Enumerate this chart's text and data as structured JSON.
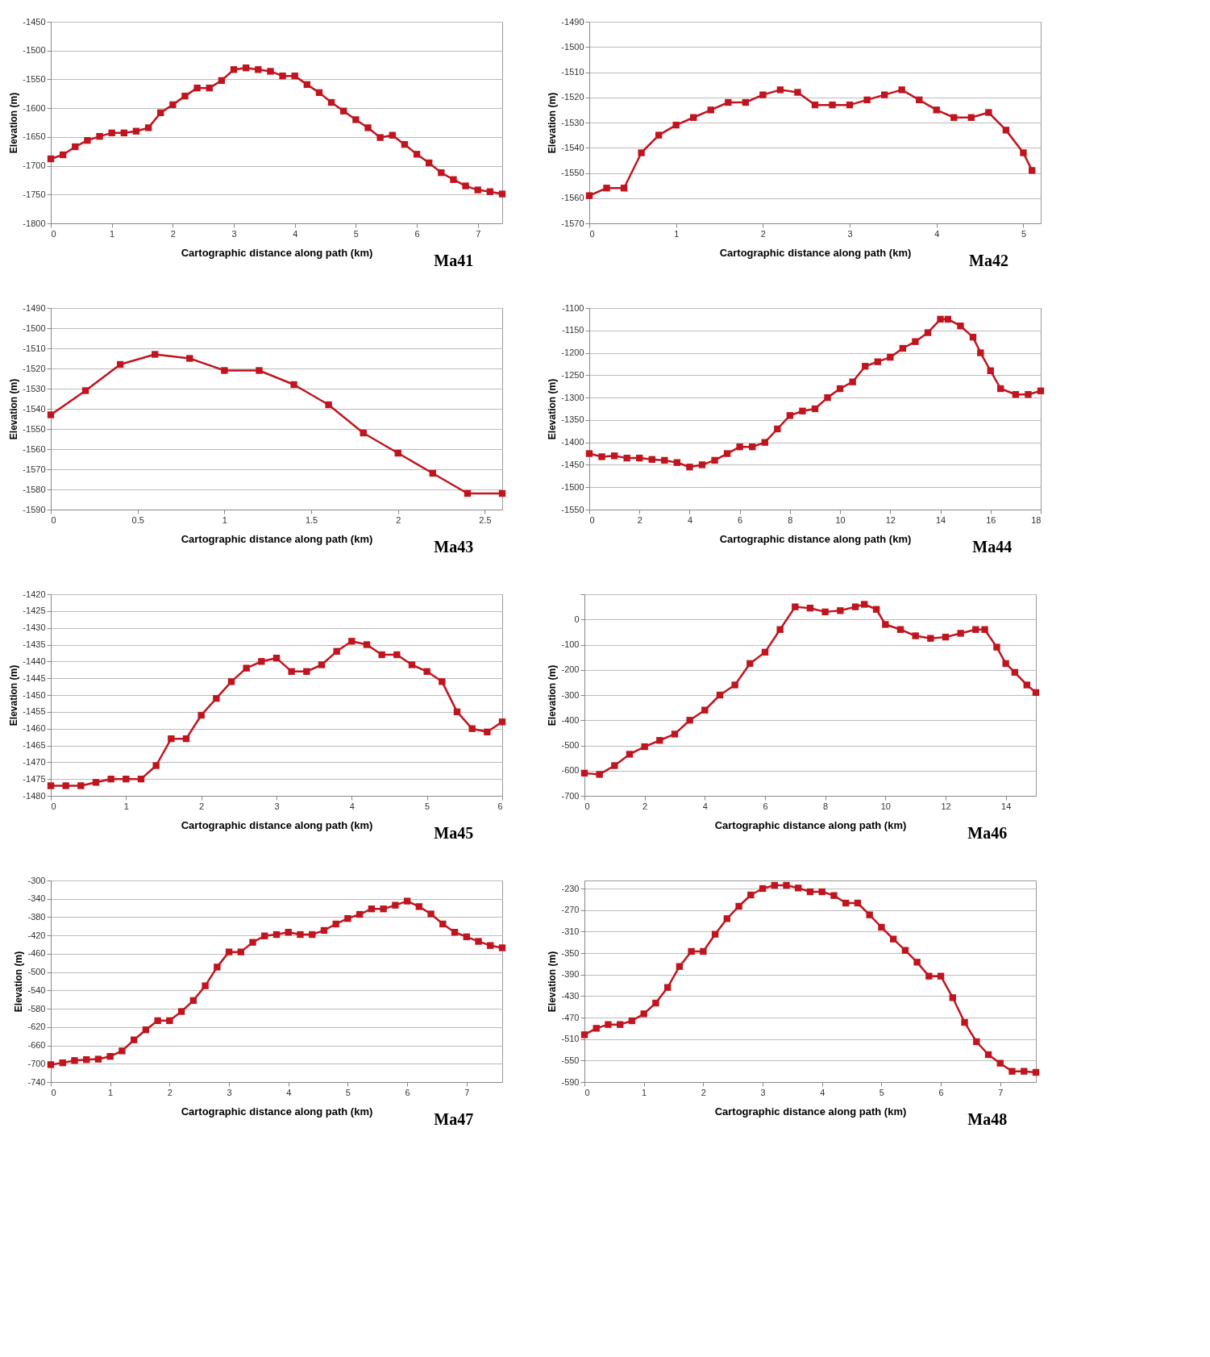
{
  "chart_data": [
    {
      "type": "line",
      "title": "Ma41",
      "xlabel": "Cartographic distance along path (km)",
      "ylabel": "Elevation (m)",
      "xlim": [
        0,
        7.4
      ],
      "xticks": [
        0,
        1,
        2,
        3,
        4,
        5,
        6,
        7
      ],
      "ylim": [
        -1800,
        -1450
      ],
      "yticks": [
        -1800,
        -1750,
        -1700,
        -1650,
        -1600,
        -1550,
        -1500,
        -1450
      ],
      "grid": "y",
      "marker": "square",
      "line_style": "solid",
      "series": [
        {
          "color": "#c0141e",
          "x": [
            0,
            0.2,
            0.4,
            0.6,
            0.8,
            1,
            1.2,
            1.4,
            1.6,
            1.8,
            2,
            2.2,
            2.4,
            2.6,
            2.8,
            3,
            3.2,
            3.4,
            3.6,
            3.8,
            4,
            4.2,
            4.4,
            4.6,
            4.8,
            5,
            5.2,
            5.4,
            5.6,
            5.8,
            6,
            6.2,
            6.4,
            6.6,
            6.8,
            7,
            7.2,
            7.4
          ],
          "values": [
            -1688,
            -1681,
            -1667,
            -1656,
            -1649,
            -1643,
            -1643,
            -1640,
            -1634,
            -1608,
            -1594,
            -1579,
            -1565,
            -1565,
            -1552,
            -1533,
            -1530,
            -1533,
            -1536,
            -1544,
            -1544,
            -1559,
            -1573,
            -1590,
            -1605,
            -1620,
            -1634,
            -1651,
            -1647,
            -1663,
            -1680,
            -1695,
            -1712,
            -1724,
            -1735,
            -1742,
            -1745,
            -1749
          ]
        }
      ]
    },
    {
      "type": "line",
      "title": "Ma42",
      "xlabel": "Cartographic distance along path (km)",
      "ylabel": "Elevation (m)",
      "xlim": [
        0,
        5.2
      ],
      "xticks": [
        0,
        1,
        2,
        3,
        4,
        5
      ],
      "ylim": [
        -1570,
        -1490
      ],
      "yticks": [
        -1570,
        -1560,
        -1550,
        -1540,
        -1530,
        -1520,
        -1510,
        -1500,
        -1490
      ],
      "grid": "y",
      "marker": "square",
      "line_style": "solid",
      "series": [
        {
          "color": "#c0141e",
          "x": [
            0,
            0.2,
            0.4,
            0.6,
            0.8,
            1,
            1.2,
            1.4,
            1.6,
            1.8,
            2,
            2.2,
            2.4,
            2.6,
            2.8,
            3,
            3.2,
            3.4,
            3.6,
            3.8,
            4,
            4.2,
            4.4,
            4.6,
            4.8,
            5,
            5.1
          ],
          "values": [
            -1559,
            -1556,
            -1556,
            -1542,
            -1535,
            -1531,
            -1528,
            -1525,
            -1522,
            -1522,
            -1519,
            -1517,
            -1518,
            -1523,
            -1523,
            -1523,
            -1521,
            -1519,
            -1517,
            -1521,
            -1525,
            -1528,
            -1528,
            -1526,
            -1533,
            -1542,
            -1549
          ]
        }
      ]
    },
    {
      "type": "line",
      "title": "Ma43",
      "xlabel": "Cartographic distance along path (km)",
      "ylabel": "Elevation (m)",
      "xlim": [
        0,
        2.6
      ],
      "xticks": [
        0,
        0.5,
        1,
        1.5,
        2,
        2.5
      ],
      "ylim": [
        -1590,
        -1490
      ],
      "yticks": [
        -1590,
        -1580,
        -1570,
        -1560,
        -1550,
        -1540,
        -1530,
        -1520,
        -1510,
        -1500,
        -1490
      ],
      "grid": "y",
      "marker": "square",
      "line_style": "solid",
      "series": [
        {
          "color": "#c0141e",
          "x": [
            0,
            0.2,
            0.4,
            0.6,
            0.8,
            1,
            1.2,
            1.4,
            1.6,
            1.8,
            2,
            2.2,
            2.4,
            2.6
          ],
          "values": [
            -1543,
            -1531,
            -1518,
            -1513,
            -1515,
            -1521,
            -1521,
            -1528,
            -1538,
            -1552,
            -1562,
            -1572,
            -1582,
            -1582
          ]
        }
      ]
    },
    {
      "type": "line",
      "title": "Ma44",
      "xlabel": "Cartographic distance along path (km)",
      "ylabel": "Elevation (m)",
      "xlim": [
        0,
        18
      ],
      "xticks": [
        0,
        2,
        4,
        6,
        8,
        10,
        12,
        14,
        16,
        18
      ],
      "ylim": [
        -1550,
        -1100
      ],
      "yticks": [
        -1550,
        -1500,
        -1450,
        -1400,
        -1350,
        -1300,
        -1250,
        -1200,
        -1150,
        -1100
      ],
      "grid": "y",
      "marker": "square",
      "line_style": "solid",
      "series": [
        {
          "color": "#c0141e",
          "x": [
            0,
            0.5,
            1,
            1.5,
            2,
            2.5,
            3,
            3.5,
            4,
            4.5,
            5,
            5.5,
            6,
            6.5,
            7,
            7.5,
            8,
            8.5,
            9,
            9.5,
            10,
            10.5,
            11,
            11.5,
            12,
            12.5,
            13,
            13.5,
            14,
            14.3,
            14.8,
            15.3,
            15.6,
            16,
            16.4,
            17,
            17.5,
            18
          ],
          "values": [
            -1425,
            -1432,
            -1430,
            -1435,
            -1435,
            -1438,
            -1440,
            -1445,
            -1455,
            -1450,
            -1440,
            -1425,
            -1410,
            -1410,
            -1400,
            -1370,
            -1340,
            -1330,
            -1325,
            -1300,
            -1280,
            -1265,
            -1230,
            -1220,
            -1210,
            -1190,
            -1175,
            -1155,
            -1125,
            -1125,
            -1140,
            -1165,
            -1200,
            -1240,
            -1280,
            -1293,
            -1293,
            -1285
          ]
        }
      ]
    },
    {
      "type": "line",
      "title": "Ma45",
      "xlabel": "Cartographic distance along path (km)",
      "ylabel": "Elevation (m)",
      "xlim": [
        0,
        6
      ],
      "xticks": [
        0,
        1,
        2,
        3,
        4,
        5,
        6
      ],
      "ylim": [
        -1480,
        -1420
      ],
      "yticks": [
        -1480,
        -1475,
        -1470,
        -1465,
        -1460,
        -1455,
        -1450,
        -1445,
        -1440,
        -1435,
        -1430,
        -1425,
        -1420
      ],
      "grid": "y",
      "marker": "square",
      "line_style": "solid",
      "series": [
        {
          "color": "#c0141e",
          "x": [
            0,
            0.2,
            0.4,
            0.6,
            0.8,
            1,
            1.2,
            1.4,
            1.6,
            1.8,
            2,
            2.2,
            2.4,
            2.6,
            2.8,
            3,
            3.2,
            3.4,
            3.6,
            3.8,
            4,
            4.2,
            4.4,
            4.6,
            4.8,
            5,
            5.2,
            5.4,
            5.6,
            5.8,
            6
          ],
          "values": [
            -1477,
            -1477,
            -1477,
            -1476,
            -1475,
            -1475,
            -1475,
            -1471,
            -1463,
            -1463,
            -1456,
            -1451,
            -1446,
            -1442,
            -1440,
            -1439,
            -1443,
            -1443,
            -1441,
            -1437,
            -1434,
            -1435,
            -1438,
            -1438,
            -1441,
            -1443,
            -1446,
            -1455,
            -1460,
            -1461,
            -1458
          ]
        }
      ]
    },
    {
      "type": "line",
      "title": "Ma46",
      "xlabel": "Cartographic distance along path (km)",
      "ylabel": "Elevation (m)",
      "xlim": [
        0,
        15
      ],
      "xticks": [
        0,
        2,
        4,
        6,
        8,
        10,
        12,
        14
      ],
      "ylim": [
        -700,
        100
      ],
      "yticks": [
        -700,
        -600,
        -500,
        -400,
        -300,
        -200,
        -100,
        0,
        {
          "value": 100,
          "label": null
        }
      ],
      "grid": "y",
      "marker": "square",
      "line_style": "solid",
      "series": [
        {
          "color": "#c0141e",
          "x": [
            0,
            0.5,
            1,
            1.5,
            2,
            2.5,
            3,
            3.5,
            4,
            4.5,
            5,
            5.5,
            6,
            6.5,
            7,
            7.5,
            8,
            8.5,
            9,
            9.3,
            9.7,
            10,
            10.5,
            11,
            11.5,
            12,
            12.5,
            13,
            13.3,
            13.7,
            14,
            14.3,
            14.7,
            15
          ],
          "values": [
            -610,
            -615,
            -580,
            -535,
            -505,
            -480,
            -455,
            -400,
            -360,
            -300,
            -260,
            -175,
            -130,
            -40,
            50,
            45,
            30,
            35,
            50,
            60,
            40,
            -20,
            -40,
            -65,
            -75,
            -70,
            -55,
            -40,
            -40,
            -110,
            -175,
            -210,
            -260,
            -290
          ]
        }
      ]
    },
    {
      "type": "line",
      "title": "Ma47",
      "xlabel": "Cartographic distance along path (km)",
      "ylabel": "Elevation (m)",
      "xlim": [
        0,
        7.6
      ],
      "xticks": [
        0,
        1,
        2,
        3,
        4,
        5,
        6,
        7
      ],
      "ylim": [
        -740,
        -300
      ],
      "yticks": [
        -740,
        -700,
        -660,
        -620,
        -580,
        -540,
        -500,
        -460,
        -420,
        -380,
        -340,
        -300
      ],
      "grid": "y",
      "marker": "square",
      "line_style": "solid",
      "series": [
        {
          "color": "#c0141e",
          "x": [
            0,
            0.2,
            0.4,
            0.6,
            0.8,
            1,
            1.2,
            1.4,
            1.6,
            1.8,
            2,
            2.2,
            2.4,
            2.6,
            2.8,
            3,
            3.2,
            3.4,
            3.6,
            3.8,
            4,
            4.2,
            4.4,
            4.6,
            4.8,
            5,
            5.2,
            5.4,
            5.6,
            5.8,
            6,
            6.2,
            6.4,
            6.6,
            6.8,
            7,
            7.2,
            7.4,
            7.6
          ],
          "values": [
            -702,
            -698,
            -693,
            -691,
            -690,
            -684,
            -672,
            -648,
            -626,
            -606,
            -606,
            -586,
            -562,
            -530,
            -489,
            -456,
            -456,
            -435,
            -421,
            -418,
            -413,
            -418,
            -418,
            -409,
            -395,
            -383,
            -374,
            -362,
            -362,
            -354,
            -345,
            -357,
            -373,
            -395,
            -413,
            -423,
            -433,
            -442,
            -447
          ]
        }
      ]
    },
    {
      "type": "line",
      "title": "Ma48",
      "xlabel": "Cartographic distance along path (km)",
      "ylabel": "Elevation (m)",
      "xlim": [
        0,
        7.6
      ],
      "xticks": [
        0,
        1,
        2,
        3,
        4,
        5,
        6,
        7
      ],
      "ylim": [
        -590,
        -215
      ],
      "yticks": [
        -590,
        -550,
        -510,
        -470,
        -430,
        -390,
        -350,
        -310,
        -270,
        -230
      ],
      "grid": "y",
      "marker": "square",
      "line_style": "solid",
      "series": [
        {
          "color": "#c0141e",
          "x": [
            0,
            0.2,
            0.4,
            0.6,
            0.8,
            1,
            1.2,
            1.4,
            1.6,
            1.8,
            2,
            2.2,
            2.4,
            2.6,
            2.8,
            3,
            3.2,
            3.4,
            3.6,
            3.8,
            4,
            4.2,
            4.4,
            4.6,
            4.8,
            5,
            5.2,
            5.4,
            5.6,
            5.8,
            6,
            6.2,
            6.4,
            6.6,
            6.8,
            7,
            7.2,
            7.4,
            7.6
          ],
          "values": [
            -502,
            -490,
            -483,
            -483,
            -476,
            -463,
            -443,
            -414,
            -375,
            -347,
            -347,
            -315,
            -286,
            -263,
            -242,
            -230,
            -224,
            -224,
            -229,
            -236,
            -236,
            -243,
            -257,
            -257,
            -279,
            -302,
            -324,
            -345,
            -367,
            -393,
            -393,
            -433,
            -479,
            -515,
            -539,
            -555,
            -570,
            -570,
            -572
          ]
        }
      ]
    }
  ]
}
